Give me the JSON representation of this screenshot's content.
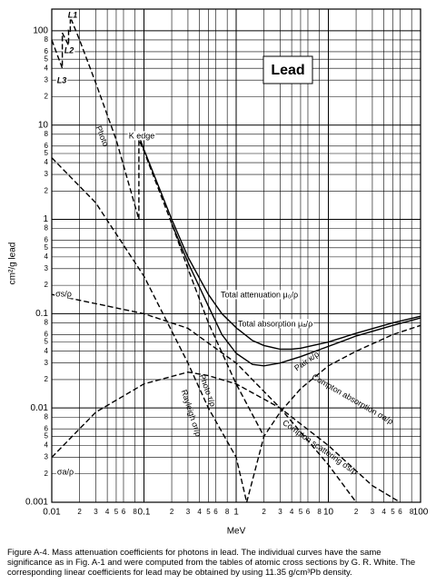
{
  "chart_data": {
    "type": "line",
    "title": "Lead",
    "x_label": "MeV",
    "y_label": "cm²/g lead",
    "caption": "Figure A-4.  Mass attenuation coefficients for photons in lead.  The individual curves have the same significance as in Fig. A-1 and were computed from the tables of atomic cross sections by G. R. White.  The corresponding linear coefficients for lead may be obtained by using 11.35 g/cm³Pb density.",
    "log_x": true,
    "log_y": true,
    "grid": true,
    "xlim": [
      0.01,
      100
    ],
    "ylim": [
      0.001,
      170
    ],
    "xticks": [
      0.01,
      {
        "value": 0.02,
        "label": "2"
      },
      {
        "value": 0.03,
        "label": "3"
      },
      {
        "value": 0.04,
        "label": "4"
      },
      {
        "value": 0.05,
        "label": "5"
      },
      {
        "value": 0.06,
        "label": "6"
      },
      {
        "value": 0.08,
        "label": "8"
      },
      0.1,
      {
        "value": 0.2,
        "label": "2"
      },
      {
        "value": 0.3,
        "label": "3"
      },
      {
        "value": 0.4,
        "label": "4"
      },
      {
        "value": 0.5,
        "label": "5"
      },
      {
        "value": 0.6,
        "label": "6"
      },
      {
        "value": 0.8,
        "label": "8"
      },
      1,
      {
        "value": 2,
        "label": "2"
      },
      {
        "value": 3,
        "label": "3"
      },
      {
        "value": 4,
        "label": "4"
      },
      {
        "value": 5,
        "label": "5"
      },
      {
        "value": 6,
        "label": "6"
      },
      {
        "value": 8,
        "label": "8"
      },
      10,
      {
        "value": 20,
        "label": "2"
      },
      {
        "value": 30,
        "label": "3"
      },
      {
        "value": 40,
        "label": "4"
      },
      {
        "value": 50,
        "label": "5"
      },
      {
        "value": 60,
        "label": "6"
      },
      {
        "value": 80,
        "label": "8"
      },
      100
    ],
    "yticks": [
      0.001,
      {
        "value": 0.002,
        "label": "2"
      },
      {
        "value": 0.003,
        "label": "3"
      },
      {
        "value": 0.004,
        "label": "4"
      },
      {
        "value": 0.005,
        "label": "5"
      },
      {
        "value": 0.006,
        "label": "6"
      },
      {
        "value": 0.008,
        "label": "8"
      },
      0.01,
      {
        "value": 0.02,
        "label": "2"
      },
      {
        "value": 0.03,
        "label": "3"
      },
      {
        "value": 0.04,
        "label": "4"
      },
      {
        "value": 0.05,
        "label": "5"
      },
      {
        "value": 0.06,
        "label": "6"
      },
      {
        "value": 0.08,
        "label": "8"
      },
      0.1,
      {
        "value": 0.2,
        "label": "2"
      },
      {
        "value": 0.3,
        "label": "3"
      },
      {
        "value": 0.4,
        "label": "4"
      },
      {
        "value": 0.5,
        "label": "5"
      },
      {
        "value": 0.6,
        "label": "6"
      },
      {
        "value": 0.8,
        "label": "8"
      },
      1,
      {
        "value": 2,
        "label": "2"
      },
      {
        "value": 3,
        "label": "3"
      },
      {
        "value": 4,
        "label": "4"
      },
      {
        "value": 5,
        "label": "5"
      },
      {
        "value": 6,
        "label": "6"
      },
      {
        "value": 8,
        "label": "8"
      },
      10,
      {
        "value": 20,
        "label": "2"
      },
      {
        "value": 30,
        "label": "3"
      },
      {
        "value": 40,
        "label": "4"
      },
      {
        "value": 50,
        "label": "5"
      },
      {
        "value": 60,
        "label": "6"
      },
      {
        "value": 80,
        "label": "8"
      },
      100
    ],
    "annotations": [
      "L1",
      "L2",
      "L3",
      "Photo",
      "K edge",
      "σs/ρ",
      "σa/ρ"
    ],
    "series": [
      {
        "name": "Total attenuation μ₀/ρ",
        "color": "#000000",
        "style": "solid",
        "x": [
          0.088,
          0.1,
          0.2,
          0.3,
          0.5,
          0.7,
          1,
          1.5,
          2,
          3,
          4,
          5,
          10,
          20,
          50,
          100
        ],
        "values": [
          7.7,
          5.5,
          1.0,
          0.4,
          0.16,
          0.1,
          0.071,
          0.052,
          0.046,
          0.042,
          0.042,
          0.043,
          0.05,
          0.062,
          0.08,
          0.094
        ]
      },
      {
        "name": "Total absorption μₐ/ρ",
        "color": "#000000",
        "style": "solid",
        "x": [
          0.2,
          0.3,
          0.5,
          0.7,
          1,
          1.5,
          2,
          3,
          5,
          10,
          20,
          50,
          100
        ],
        "values": [
          0.9,
          0.35,
          0.12,
          0.06,
          0.038,
          0.029,
          0.028,
          0.03,
          0.035,
          0.045,
          0.058,
          0.075,
          0.09
        ]
      },
      {
        "name": "Photo τ/ρ",
        "color": "#000000",
        "style": "dashed",
        "x": [
          0.01,
          0.013,
          0.013,
          0.0152,
          0.0152,
          0.0159,
          0.0159,
          0.02,
          0.03,
          0.05,
          0.088,
          0.088,
          0.1,
          0.2,
          0.3,
          0.5,
          1,
          2
        ],
        "values": [
          80,
          40,
          95,
          70,
          100,
          95,
          140,
          80,
          28,
          7,
          1.0,
          7,
          5.3,
          0.9,
          0.3,
          0.08,
          0.018,
          0.005
        ]
      },
      {
        "name": "Rayleigh σr/ρ",
        "color": "#000000",
        "style": "dashed",
        "x": [
          0.01,
          0.03,
          0.1,
          0.3,
          0.5,
          1,
          1.3
        ],
        "values": [
          4.5,
          1.5,
          0.25,
          0.03,
          0.01,
          0.003,
          0.001
        ]
      },
      {
        "name": "Compton scattering σs/ρ",
        "color": "#000000",
        "style": "dashed",
        "x": [
          0.01,
          0.1,
          0.3,
          1,
          3,
          10,
          20
        ],
        "values": [
          0.16,
          0.1,
          0.07,
          0.03,
          0.01,
          0.0025,
          0.001
        ]
      },
      {
        "name": "Compton absorption σa/ρ",
        "color": "#000000",
        "style": "dashed",
        "x": [
          0.01,
          0.03,
          0.1,
          0.3,
          0.5,
          1,
          3,
          10,
          30,
          60
        ],
        "values": [
          0.003,
          0.009,
          0.018,
          0.024,
          0.022,
          0.018,
          0.01,
          0.004,
          0.0015,
          0.001
        ]
      },
      {
        "name": "Pair κ/ρ",
        "color": "#000000",
        "style": "dashed",
        "x": [
          1.3,
          2,
          3,
          5,
          10,
          20,
          50,
          100
        ],
        "values": [
          0.001,
          0.005,
          0.009,
          0.016,
          0.028,
          0.04,
          0.06,
          0.075
        ]
      }
    ]
  }
}
